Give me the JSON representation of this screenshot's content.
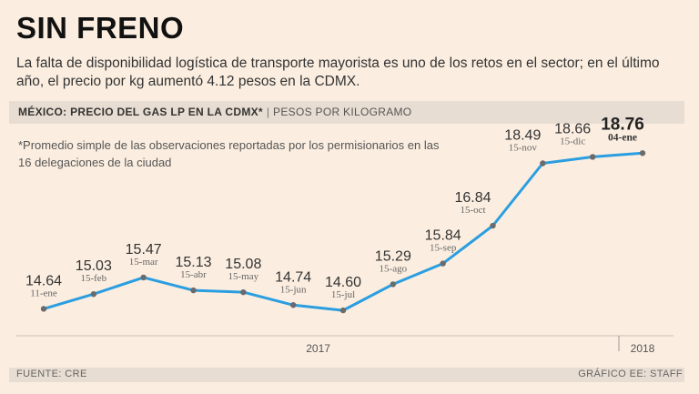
{
  "header": {
    "title": "SIN FRENO",
    "subtitle": "La falta de disponibilidad logística de transporte mayorista es uno de los retos en el sector; en el último año, el precio por kg aumentó 4.12 pesos en la CDMX."
  },
  "chart_header": {
    "main": "MÉXICO: PRECIO DEL GAS LP EN LA CDMX*",
    "separator": "|",
    "units": "PESOS POR KILOGRAMO"
  },
  "note": "*Promedio simple de las observaciones reportadas por los permisionarios en las 16 delegaciones de la ciudad",
  "footer": {
    "source": "FUENTE: CRE",
    "credit": "GRÁFICO EE: STAFF"
  },
  "colors": {
    "line": "#2a9ee0",
    "marker": "#6b6b6b",
    "background": "#fbeee0"
  },
  "chart_data": {
    "type": "line",
    "title": "MÉXICO: PRECIO DEL GAS LP EN LA CDMX*",
    "ylabel": "PESOS POR KILOGRAMO",
    "xlabel": "",
    "ylim": [
      14.0,
      19.2
    ],
    "categories": [
      "11-ene",
      "15-feb",
      "15-mar",
      "15-abr",
      "15-may",
      "15-jun",
      "15-jul",
      "15-ago",
      "15-sep",
      "15-oct",
      "15-nov",
      "15-dic",
      "04-ene"
    ],
    "value_labels": [
      "14.64",
      "15.03",
      "15.47",
      "15.13",
      "15.08",
      "14.74",
      "14.60",
      "15.29",
      "15.84",
      "16.84",
      "18.49",
      "18.66",
      "18.76"
    ],
    "values": [
      14.64,
      15.03,
      15.47,
      15.13,
      15.08,
      14.74,
      14.6,
      15.29,
      15.84,
      16.84,
      18.49,
      18.66,
      18.76
    ],
    "highlight_last": true,
    "years": [
      {
        "label": "2017",
        "from": 0,
        "to": 11
      },
      {
        "label": "2018",
        "from": 12,
        "to": 12
      }
    ]
  }
}
